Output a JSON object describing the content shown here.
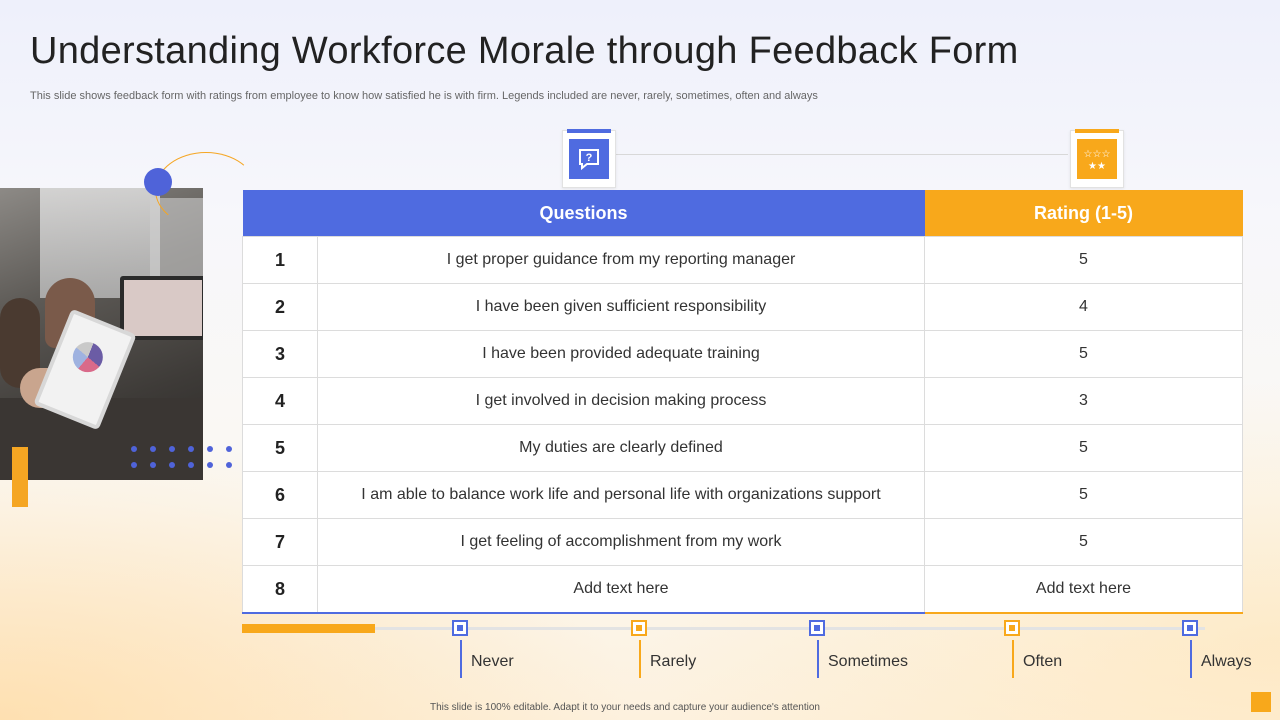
{
  "slide": {
    "title": "Understanding Workforce Morale through Feedback Form",
    "subtitle": "This slide shows feedback form with ratings from employee to know how satisfied he is with firm. Legends included are never, rarely,  sometimes, often and always",
    "footer": "This slide is 100% editable. Adapt it to your needs and capture your audience's attention"
  },
  "colors": {
    "accent_blue": "#4f6be0",
    "accent_orange": "#f8a81b"
  },
  "icons": {
    "questions_icon": "question-chat-icon",
    "rating_icon": "stars-rating-icon"
  },
  "table": {
    "headers": {
      "questions": "Questions",
      "rating": "Rating (1-5)"
    },
    "rows": [
      {
        "num": "1",
        "question": "I get proper guidance from my reporting manager",
        "rating": "5"
      },
      {
        "num": "2",
        "question": "I have been given sufficient responsibility",
        "rating": "4"
      },
      {
        "num": "3",
        "question": "I have been provided adequate training",
        "rating": "5"
      },
      {
        "num": "4",
        "question": "I get involved in decision making process",
        "rating": "3"
      },
      {
        "num": "5",
        "question": "My duties are clearly defined",
        "rating": "5"
      },
      {
        "num": "6",
        "question": "I am able to balance work life and personal life with organizations support",
        "rating": "5"
      },
      {
        "num": "7",
        "question": "I get feeling of accomplishment from my work",
        "rating": "5"
      },
      {
        "num": "8",
        "question": "Add text here",
        "rating": "Add text here"
      }
    ]
  },
  "legend": {
    "items": [
      "Never",
      "Rarely",
      "Sometimes",
      "Often",
      "Always"
    ]
  }
}
